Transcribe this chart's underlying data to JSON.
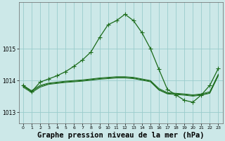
{
  "bg_color": "#cce8e8",
  "grid_color": "#99cccc",
  "line_color": "#1a6b1a",
  "title": "Graphe pression niveau de la mer (hPa)",
  "title_fontsize": 7.5,
  "xlim": [
    -0.5,
    23.5
  ],
  "ylim": [
    1012.65,
    1016.45
  ],
  "yticks": [
    1013,
    1014,
    1015
  ],
  "xticks": [
    0,
    1,
    2,
    3,
    4,
    5,
    6,
    7,
    8,
    9,
    10,
    11,
    12,
    13,
    14,
    15,
    16,
    17,
    18,
    19,
    20,
    21,
    22,
    23
  ],
  "flat_series": [
    {
      "y": [
        1013.85,
        1013.68,
        1013.85,
        1013.92,
        1013.95,
        1013.98,
        1014.0,
        1014.02,
        1014.05,
        1014.08,
        1014.1,
        1014.12,
        1014.12,
        1014.1,
        1014.05,
        1014.0,
        1013.75,
        1013.62,
        1013.6,
        1013.58,
        1013.55,
        1013.58,
        1013.65,
        1014.2
      ]
    },
    {
      "y": [
        1013.82,
        1013.65,
        1013.82,
        1013.9,
        1013.93,
        1013.96,
        1013.98,
        1014.0,
        1014.03,
        1014.06,
        1014.08,
        1014.1,
        1014.1,
        1014.08,
        1014.03,
        1013.98,
        1013.72,
        1013.6,
        1013.58,
        1013.56,
        1013.53,
        1013.56,
        1013.62,
        1014.18
      ]
    },
    {
      "y": [
        1013.79,
        1013.62,
        1013.79,
        1013.88,
        1013.91,
        1013.94,
        1013.96,
        1013.98,
        1014.01,
        1014.04,
        1014.06,
        1014.08,
        1014.08,
        1014.06,
        1014.01,
        1013.96,
        1013.7,
        1013.58,
        1013.56,
        1013.54,
        1013.51,
        1013.54,
        1013.6,
        1014.15
      ]
    }
  ],
  "main_series": {
    "x": [
      0,
      1,
      2,
      3,
      4,
      5,
      6,
      7,
      8,
      9,
      10,
      11,
      12,
      13,
      14,
      15,
      16,
      17,
      18,
      19,
      20,
      21,
      22,
      23
    ],
    "y": [
      1013.85,
      1013.65,
      1013.95,
      1014.05,
      1014.15,
      1014.28,
      1014.45,
      1014.65,
      1014.9,
      1015.35,
      1015.75,
      1015.88,
      1016.08,
      1015.88,
      1015.5,
      1015.0,
      1014.35,
      1013.72,
      1013.55,
      1013.38,
      1013.32,
      1013.55,
      1013.85,
      1014.38
    ]
  }
}
